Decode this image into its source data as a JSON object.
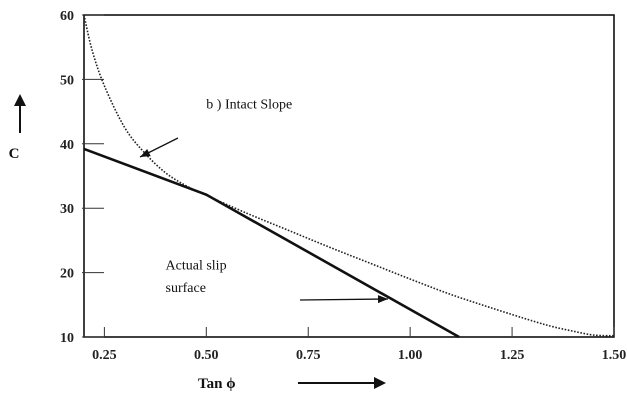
{
  "chart_data": {
    "type": "line",
    "title": "",
    "xlabel": "Tan ϕ",
    "ylabel": "C",
    "xlim": [
      0.2,
      1.5
    ],
    "ylim": [
      10,
      60
    ],
    "x_ticks": [
      0.25,
      0.5,
      0.75,
      1.0,
      1.25,
      1.5
    ],
    "x_tick_labels": [
      "0.25",
      "0.50",
      "0.75",
      "1.00",
      "1.25",
      "1.50"
    ],
    "y_ticks": [
      10,
      20,
      30,
      40,
      50,
      60
    ],
    "y_tick_labels": [
      "10",
      "20",
      "30",
      "40",
      "50",
      "60"
    ],
    "grid": false,
    "series": [
      {
        "name": "",
        "style": "dotted",
        "x": [
          0.2,
          0.22,
          0.25,
          0.3,
          0.35,
          0.4,
          0.45,
          0.5,
          0.6,
          0.7,
          0.8,
          0.9,
          1.0,
          1.1,
          1.2,
          1.3,
          1.35,
          1.4,
          1.45,
          1.5
        ],
        "y": [
          60,
          54.5,
          49,
          42.5,
          38.5,
          35.5,
          33.5,
          32,
          29.2,
          26.6,
          24,
          21.5,
          19,
          16.6,
          14.5,
          12.5,
          11.6,
          10.9,
          10.3,
          10.2
        ]
      },
      {
        "name": "",
        "style": "solid",
        "x": [
          0.2,
          0.5,
          1.12
        ],
        "y": [
          39.2,
          32.1,
          10
        ]
      }
    ],
    "annotations": [
      {
        "text": "b ) Intact Slope",
        "x": 0.5,
        "y": 45.5
      },
      {
        "text": "Actual slip",
        "x": 0.4,
        "y": 20.5
      },
      {
        "text": "surface",
        "x": 0.4,
        "y": 17
      }
    ]
  }
}
